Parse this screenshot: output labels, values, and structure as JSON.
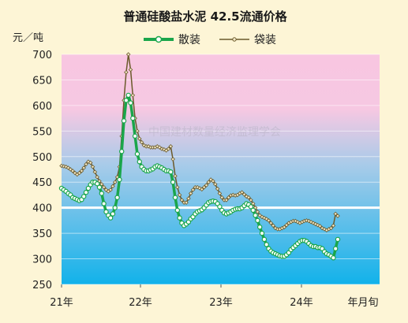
{
  "chart_data": {
    "type": "line",
    "title": "普通硅酸盐水泥 42.5流通价格",
    "ylabel": "元／吨",
    "xlabel": "年月旬",
    "ylim": [
      250,
      700
    ],
    "y_ticks": [
      250,
      300,
      350,
      400,
      450,
      500,
      550,
      600,
      650,
      700
    ],
    "x_ticks": [
      "21年",
      "22年",
      "23年",
      "24年"
    ],
    "watermark": "中国建材数量经济监理学会",
    "legend": {
      "placement": "top"
    },
    "background_colors": {
      "top": "#f9c8e2",
      "bottom": "#14b4ea",
      "highlight_line": "#ffffff",
      "highlight_value": 400
    },
    "series": [
      {
        "name": "散装",
        "color": "#1aa64b",
        "marker": "circle",
        "values": [
          438,
          435,
          432,
          428,
          425,
          420,
          418,
          416,
          414,
          416,
          422,
          430,
          438,
          445,
          450,
          450,
          447,
          440,
          428,
          408,
          392,
          385,
          380,
          388,
          400,
          420,
          455,
          510,
          570,
          610,
          620,
          605,
          575,
          540,
          505,
          490,
          480,
          475,
          472,
          472,
          474,
          476,
          480,
          482,
          480,
          478,
          475,
          472,
          472,
          470,
          450,
          420,
          395,
          380,
          370,
          365,
          368,
          372,
          378,
          382,
          388,
          392,
          394,
          396,
          400,
          405,
          410,
          412,
          413,
          412,
          408,
          402,
          395,
          390,
          388,
          390,
          392,
          395,
          397,
          398,
          398,
          400,
          404,
          408,
          406,
          402,
          395,
          385,
          375,
          362,
          350,
          338,
          328,
          320,
          315,
          312,
          310,
          308,
          306,
          305,
          305,
          308,
          312,
          318,
          322,
          326,
          330,
          334,
          336,
          336,
          334,
          330,
          326,
          324,
          324,
          322,
          322,
          320,
          314,
          310,
          308,
          305,
          302,
          320,
          338
        ]
      },
      {
        "name": "袋装",
        "color": "#6b5a2b",
        "marker": "diamond",
        "values": [
          482,
          481,
          480,
          478,
          475,
          472,
          468,
          465,
          468,
          472,
          478,
          485,
          490,
          488,
          480,
          470,
          460,
          452,
          446,
          440,
          435,
          432,
          435,
          442,
          450,
          460,
          480,
          540,
          610,
          665,
          700,
          670,
          620,
          575,
          550,
          535,
          528,
          522,
          520,
          520,
          518,
          518,
          518,
          520,
          518,
          515,
          514,
          512,
          515,
          520,
          495,
          462,
          440,
          425,
          415,
          410,
          410,
          418,
          428,
          435,
          440,
          440,
          438,
          436,
          440,
          444,
          450,
          455,
          452,
          446,
          437,
          428,
          420,
          415,
          415,
          420,
          424,
          425,
          424,
          425,
          428,
          430,
          426,
          422,
          420,
          415,
          408,
          400,
          392,
          385,
          382,
          380,
          378,
          375,
          370,
          365,
          360,
          358,
          358,
          360,
          362,
          366,
          370,
          372,
          374,
          374,
          372,
          370,
          372,
          374,
          375,
          374,
          372,
          370,
          368,
          366,
          364,
          360,
          358,
          356,
          358,
          360,
          365,
          388,
          384
        ]
      }
    ]
  }
}
